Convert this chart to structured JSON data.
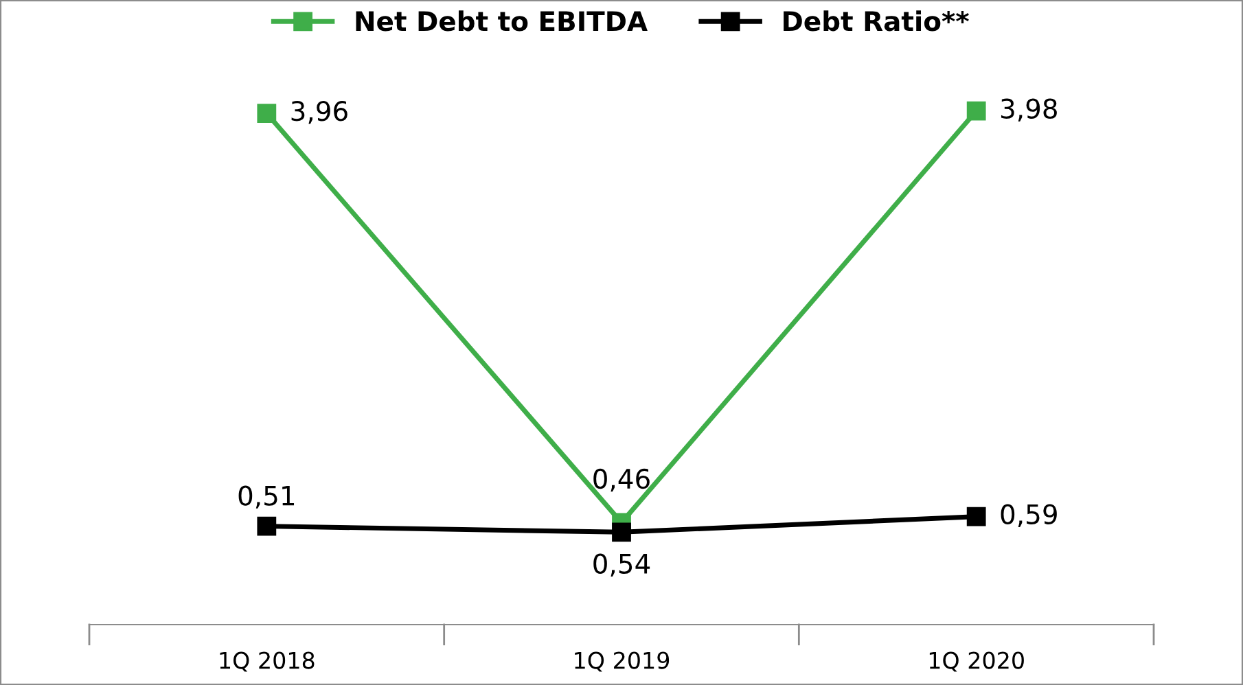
{
  "chart_data": {
    "type": "line",
    "categories": [
      "1Q 2018",
      "1Q 2019",
      "1Q 2020"
    ],
    "series": [
      {
        "name": "Net Debt to EBITDA",
        "color": "#3fae49",
        "values": [
          3.96,
          0.54,
          3.98
        ],
        "value_labels": [
          "3,96",
          "0,54",
          "3,98"
        ]
      },
      {
        "name": "Debt Ratio**",
        "color": "#000000",
        "values": [
          0.51,
          0.46,
          0.59
        ],
        "value_labels": [
          "0,51",
          "0,46",
          "0,59"
        ]
      }
    ],
    "marker": "square",
    "line_style": "solid",
    "legend": "top",
    "grid": false
  }
}
